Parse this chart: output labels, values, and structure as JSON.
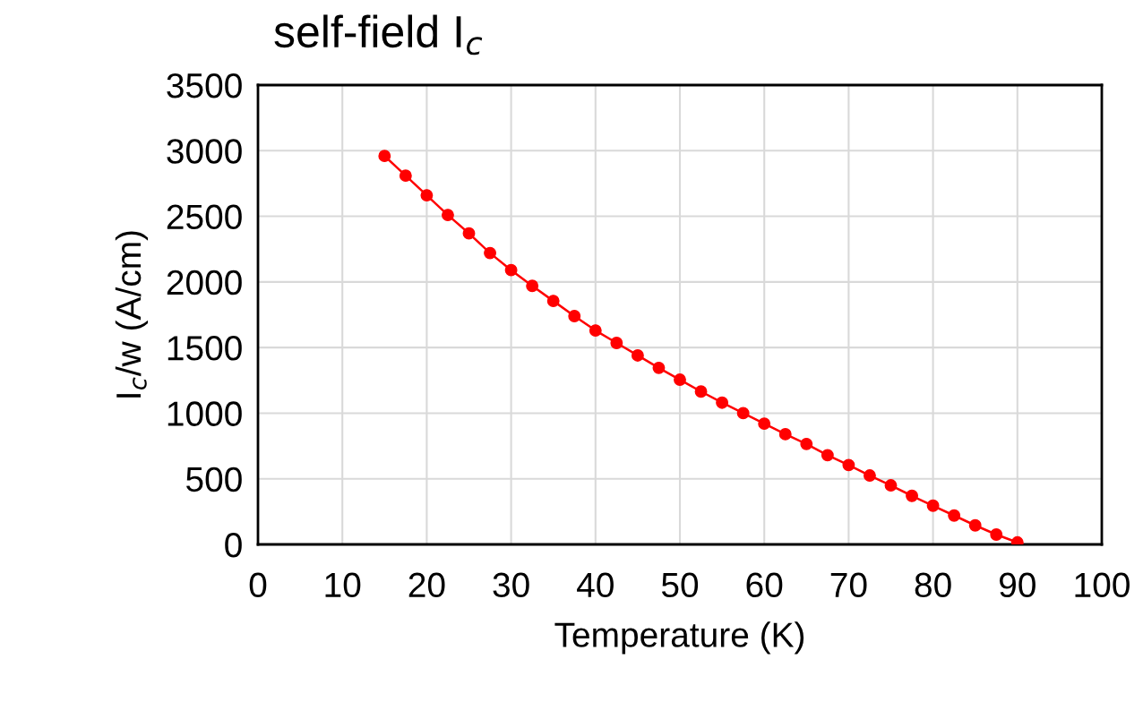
{
  "chart_data": {
    "type": "line",
    "title": "self-field I$_{c}$",
    "xlabel": "Temperature (K)",
    "ylabel": "I$_{c}$/w (A/cm)",
    "x": [
      15,
      17.5,
      20,
      22.5,
      25,
      27.5,
      30,
      32.5,
      35,
      37.5,
      40,
      42.5,
      45,
      47.5,
      50,
      52.5,
      55,
      57.5,
      60,
      62.5,
      65,
      67.5,
      70,
      72.5,
      75,
      77.5,
      80,
      82.5,
      85,
      87.5,
      90
    ],
    "series": [
      {
        "color": "#ff0000",
        "values": [
          2960,
          2810,
          2660,
          2510,
          2370,
          2220,
          2090,
          1970,
          1855,
          1740,
          1630,
          1535,
          1440,
          1345,
          1255,
          1165,
          1080,
          1000,
          920,
          840,
          765,
          680,
          605,
          525,
          450,
          370,
          295,
          220,
          145,
          75,
          15
        ]
      }
    ],
    "xlim": [
      0,
      100
    ],
    "xticks": [
      0,
      10,
      20,
      30,
      40,
      50,
      60,
      70,
      80,
      90,
      100
    ],
    "ylim": [
      0,
      3500
    ],
    "yticks": [
      0,
      500,
      1000,
      1500,
      2000,
      2500,
      3000,
      3500
    ],
    "grid": true,
    "marker": "circle",
    "line_style": "solid",
    "legend": false
  }
}
